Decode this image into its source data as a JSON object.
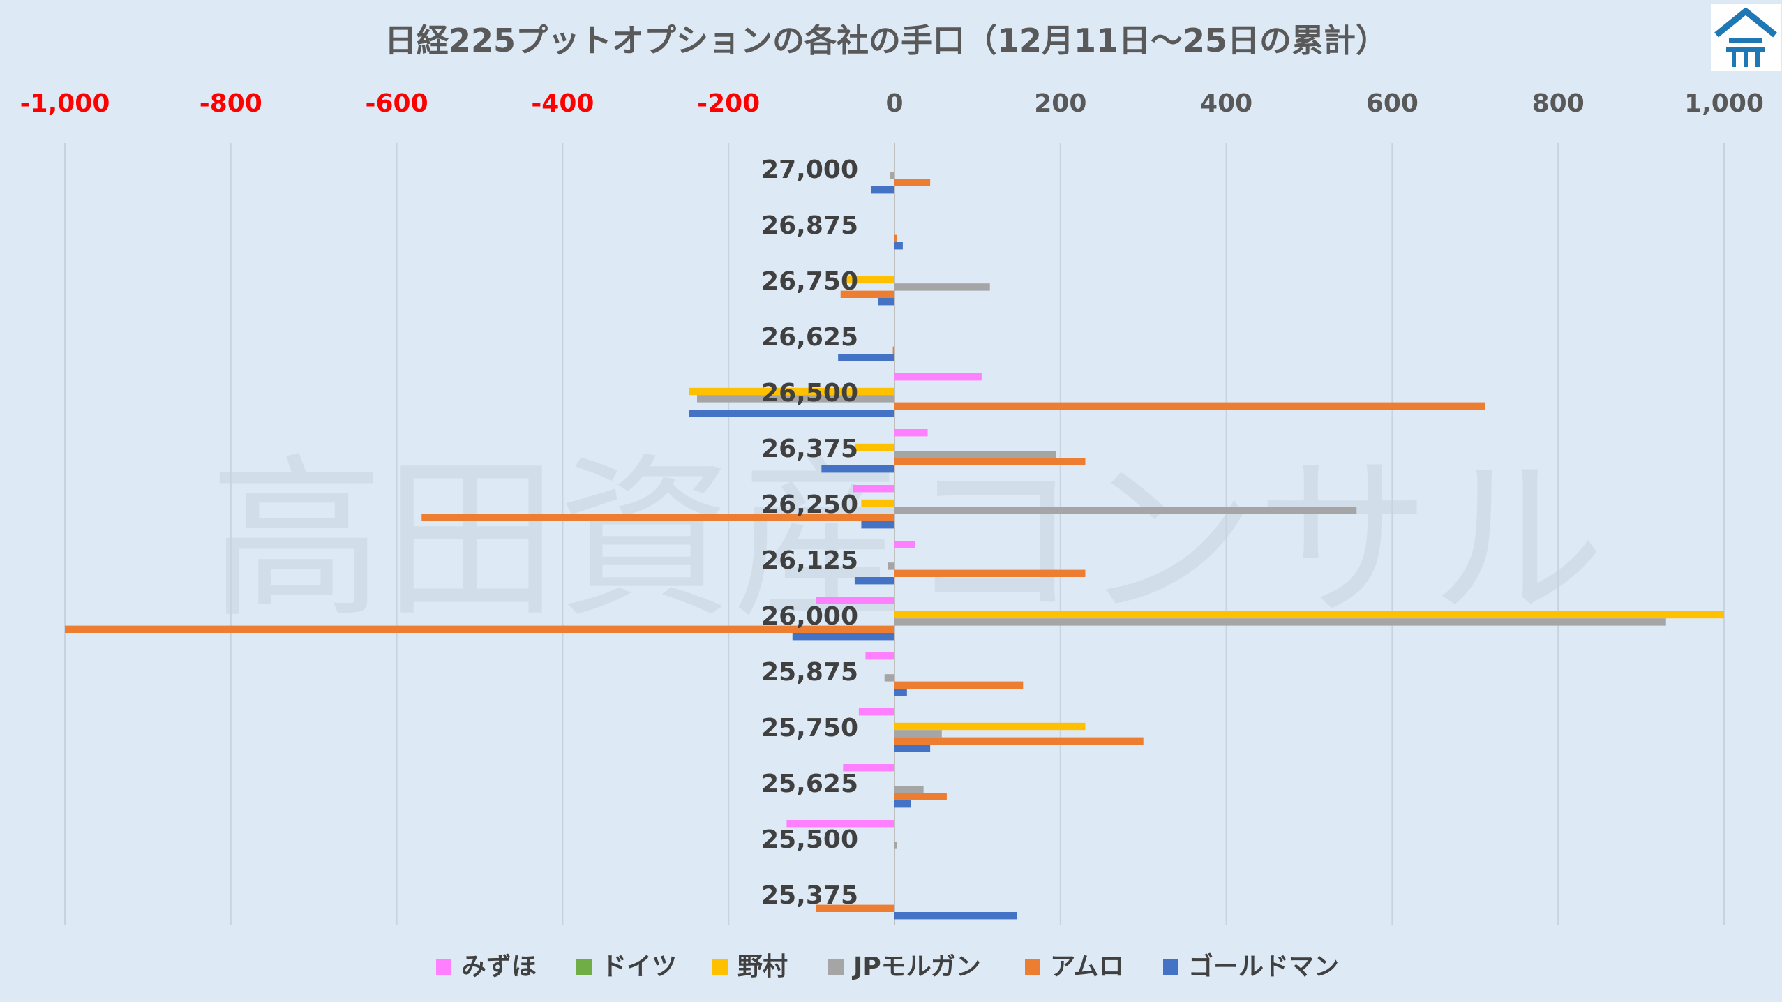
{
  "chart_data": {
    "type": "bar",
    "orientation": "horizontal",
    "title": "日経225プットオプションの各社の手口（12月11日〜25日の累計）",
    "xlim": [
      -1000,
      1000
    ],
    "x_ticks": [
      "-1,000",
      "-800",
      "-600",
      "-400",
      "-200",
      "0",
      "200",
      "400",
      "600",
      "800",
      "1,000"
    ],
    "x_tick_values": [
      -1000,
      -800,
      -600,
      -400,
      -200,
      0,
      200,
      400,
      600,
      800,
      1000
    ],
    "grid": "vertical",
    "legend_position": "bottom",
    "categories": [
      "27,000",
      "26,875",
      "26,750",
      "26,625",
      "26,500",
      "26,375",
      "26,250",
      "26,125",
      "26,000",
      "25,875",
      "25,750",
      "25,625",
      "25,500",
      "25,375"
    ],
    "series": [
      {
        "name": "みずほ",
        "color": "#ff80ff",
        "values": [
          0,
          0,
          0,
          0,
          105,
          40,
          -50,
          25,
          -95,
          -35,
          -43,
          -62,
          -130,
          0
        ]
      },
      {
        "name": "ドイツ",
        "color": "#70ad47",
        "values": [
          0,
          0,
          0,
          0,
          0,
          0,
          0,
          0,
          0,
          0,
          0,
          0,
          0,
          0
        ]
      },
      {
        "name": "野村",
        "color": "#ffc000",
        "values": [
          0,
          0,
          -60,
          0,
          -248,
          -48,
          -40,
          0,
          1000,
          0,
          230,
          0,
          0,
          0
        ]
      },
      {
        "name": "JPモルガン",
        "color": "#a5a5a5",
        "values": [
          -5,
          0,
          115,
          0,
          -238,
          195,
          557,
          -8,
          930,
          -12,
          57,
          35,
          3,
          0
        ]
      },
      {
        "name": "アムロ",
        "color": "#ed7d31",
        "values": [
          43,
          3,
          -65,
          -2,
          712,
          230,
          -570,
          230,
          -1000,
          155,
          300,
          63,
          0,
          -95
        ]
      },
      {
        "name": "ゴールドマン",
        "color": "#4472c4",
        "values": [
          -28,
          10,
          -20,
          -68,
          -248,
          -88,
          -40,
          -48,
          -123,
          15,
          43,
          20,
          0,
          148
        ]
      }
    ]
  },
  "colors": {
    "background": "#dde9f5",
    "negative_tick": "#ff0000",
    "positive_tick": "#595959",
    "grid": "#c8d3df"
  },
  "watermark": "高田資産コンサル",
  "logo": {
    "icon": "house-logo-icon",
    "color": "#1f77b4"
  }
}
